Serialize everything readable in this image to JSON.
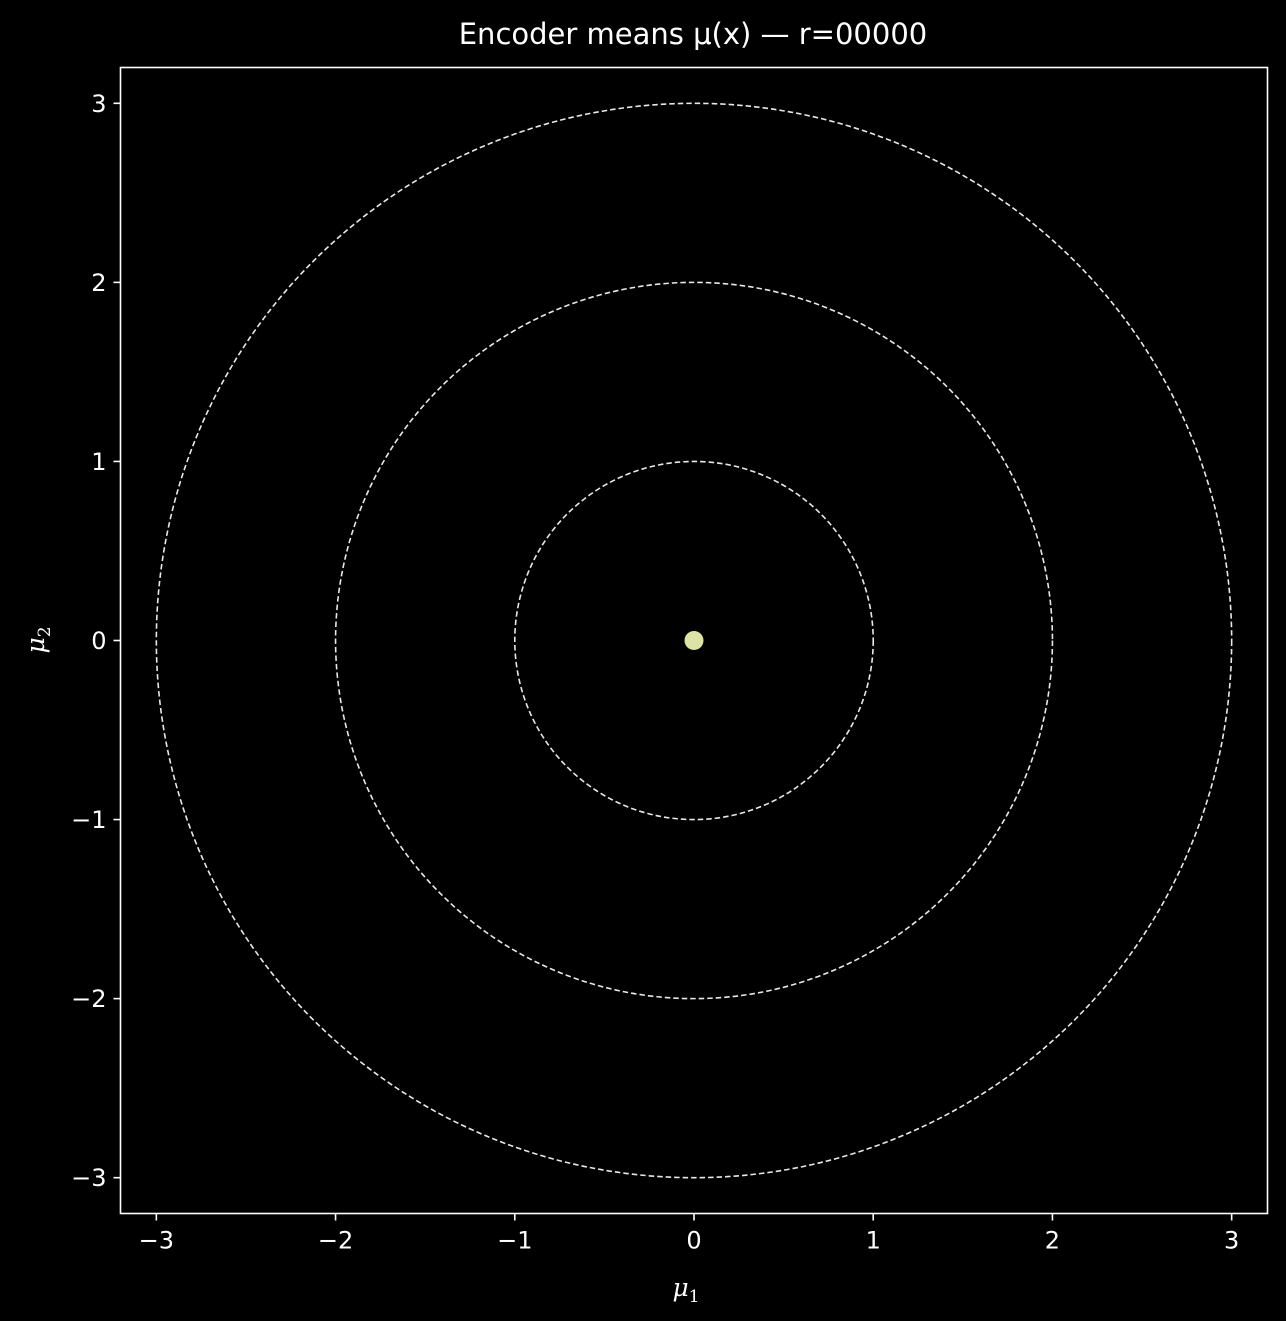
{
  "chart_data": {
    "type": "scatter",
    "title": "Encoder means μ(x) — r=00000",
    "xlabel": "μ",
    "xlabel_sub": "1",
    "ylabel": "μ",
    "ylabel_sub": "2",
    "xlim": [
      -3.2,
      3.2
    ],
    "ylim": [
      -3.2,
      3.2
    ],
    "xticks": [
      -3,
      -2,
      -1,
      0,
      1,
      2,
      3
    ],
    "yticks": [
      -3,
      -2,
      -1,
      0,
      1,
      2,
      3
    ],
    "xtick_labels": [
      "−3",
      "−2",
      "−1",
      "0",
      "1",
      "2",
      "3"
    ],
    "ytick_labels": [
      "−3",
      "−2",
      "−1",
      "0",
      "1",
      "2",
      "3"
    ],
    "reference_circles": [
      {
        "radius": 1,
        "style": "dashed"
      },
      {
        "radius": 2,
        "style": "dashed"
      },
      {
        "radius": 3,
        "style": "dashed"
      }
    ],
    "points": [
      {
        "x": 0.0,
        "y": 0.0
      }
    ],
    "grid": false,
    "colors": {
      "background": "#000000",
      "axes": "#ffffff",
      "text": "#ffffff",
      "circles": "#e8e8e8",
      "point": "#dde3a4"
    }
  }
}
